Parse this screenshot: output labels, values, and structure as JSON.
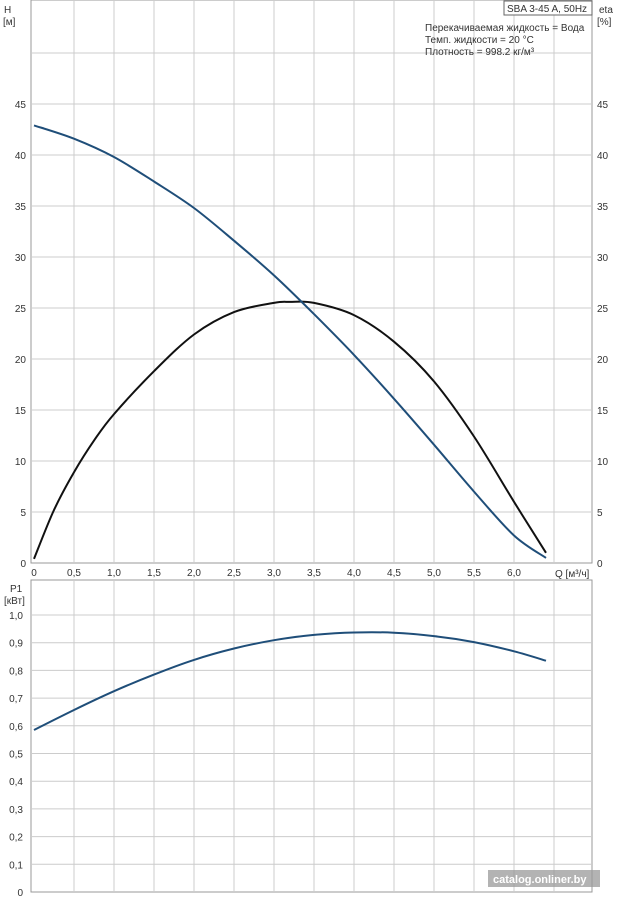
{
  "header": {
    "model": "SBA 3-45 A, 50Hz",
    "liquid": "Перекачиваемая жидкость = Вода",
    "temperature": "Темп. жидкости = 20 °C",
    "density": "Плотность = 998.2 кг/м³"
  },
  "watermark": "catalog.onliner.by",
  "colors": {
    "head_curve": "#1f4e79",
    "eff_curve": "#111111",
    "power_curve": "#1f4e79",
    "grid": "#cccccc",
    "axis": "#333333"
  },
  "chart_data": [
    {
      "type": "line",
      "title": "SBA 3-45 A, 50Hz",
      "xlabel": "Q [м³/ч]",
      "ylabel_left": "H [м]",
      "ylabel_right": "eta [%]",
      "xlim": [
        0,
        7
      ],
      "ylim": [
        0,
        50
      ],
      "x_ticks": [
        "0",
        "0,5",
        "1,0",
        "1,5",
        "2,0",
        "2,5",
        "3,0",
        "3,5",
        "4,0",
        "4,5",
        "5,0",
        "5,5",
        "6,0"
      ],
      "y_ticks": [
        "0",
        "5",
        "10",
        "15",
        "20",
        "25",
        "30",
        "35",
        "40",
        "45"
      ],
      "grid": true,
      "series": [
        {
          "key": "head",
          "x": [
            0.0,
            0.5,
            1.0,
            1.5,
            2.0,
            2.5,
            3.0,
            3.5,
            4.0,
            4.5,
            5.0,
            5.5,
            6.0,
            6.4
          ],
          "y": [
            42.9,
            41.6,
            39.8,
            37.4,
            34.8,
            31.6,
            28.2,
            24.4,
            20.4,
            16.1,
            11.6,
            7.0,
            2.7,
            0.5
          ]
        },
        {
          "key": "efficiency",
          "x": [
            0.0,
            0.25,
            0.5,
            0.75,
            1.0,
            1.5,
            2.0,
            2.5,
            3.0,
            3.2,
            3.5,
            4.0,
            4.5,
            5.0,
            5.5,
            6.0,
            6.4
          ],
          "y": [
            0.4,
            5.2,
            8.9,
            12.0,
            14.6,
            18.8,
            22.4,
            24.6,
            25.5,
            25.6,
            25.5,
            24.3,
            21.7,
            17.8,
            12.4,
            6.0,
            1.0
          ]
        }
      ]
    },
    {
      "type": "line",
      "ylabel": "P1 [кВт]",
      "xlim": [
        0,
        7
      ],
      "ylim": [
        0,
        1.0
      ],
      "y_ticks": [
        "0",
        "0,1",
        "0,2",
        "0,3",
        "0,4",
        "0,5",
        "0,6",
        "0,7",
        "0,8",
        "0,9",
        "1,0"
      ],
      "grid": true,
      "series": [
        {
          "key": "power",
          "x": [
            0.0,
            0.5,
            1.0,
            1.5,
            2.0,
            2.5,
            3.0,
            3.5,
            4.0,
            4.5,
            5.0,
            5.5,
            6.0,
            6.4
          ],
          "y": [
            0.585,
            0.657,
            0.725,
            0.785,
            0.838,
            0.879,
            0.909,
            0.928,
            0.937,
            0.936,
            0.924,
            0.902,
            0.869,
            0.835
          ]
        }
      ]
    }
  ]
}
